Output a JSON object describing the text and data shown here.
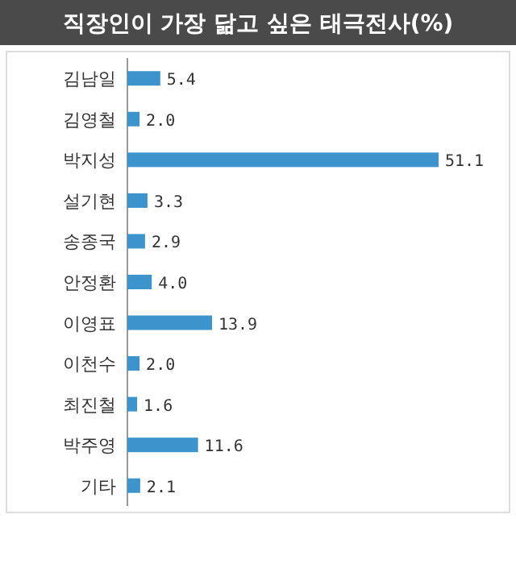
{
  "chart_data": {
    "type": "bar",
    "orientation": "horizontal",
    "title": "직장인이 가장 닮고 싶은 태극전사(%)",
    "categories": [
      "김남일",
      "김영철",
      "박지성",
      "설기현",
      "송종국",
      "안정환",
      "이영표",
      "이천수",
      "최진철",
      "박주영",
      "기타"
    ],
    "values": [
      5.4,
      2.0,
      51.1,
      3.3,
      2.9,
      4.0,
      13.9,
      2.0,
      1.6,
      11.6,
      2.1
    ],
    "color": "#3d93cc",
    "value_labels": [
      "5.4",
      "2.0",
      "51.1",
      "3.3",
      "2.9",
      "4.0",
      "13.9",
      "2.0",
      "1.6",
      "11.6",
      "2.1"
    ]
  }
}
